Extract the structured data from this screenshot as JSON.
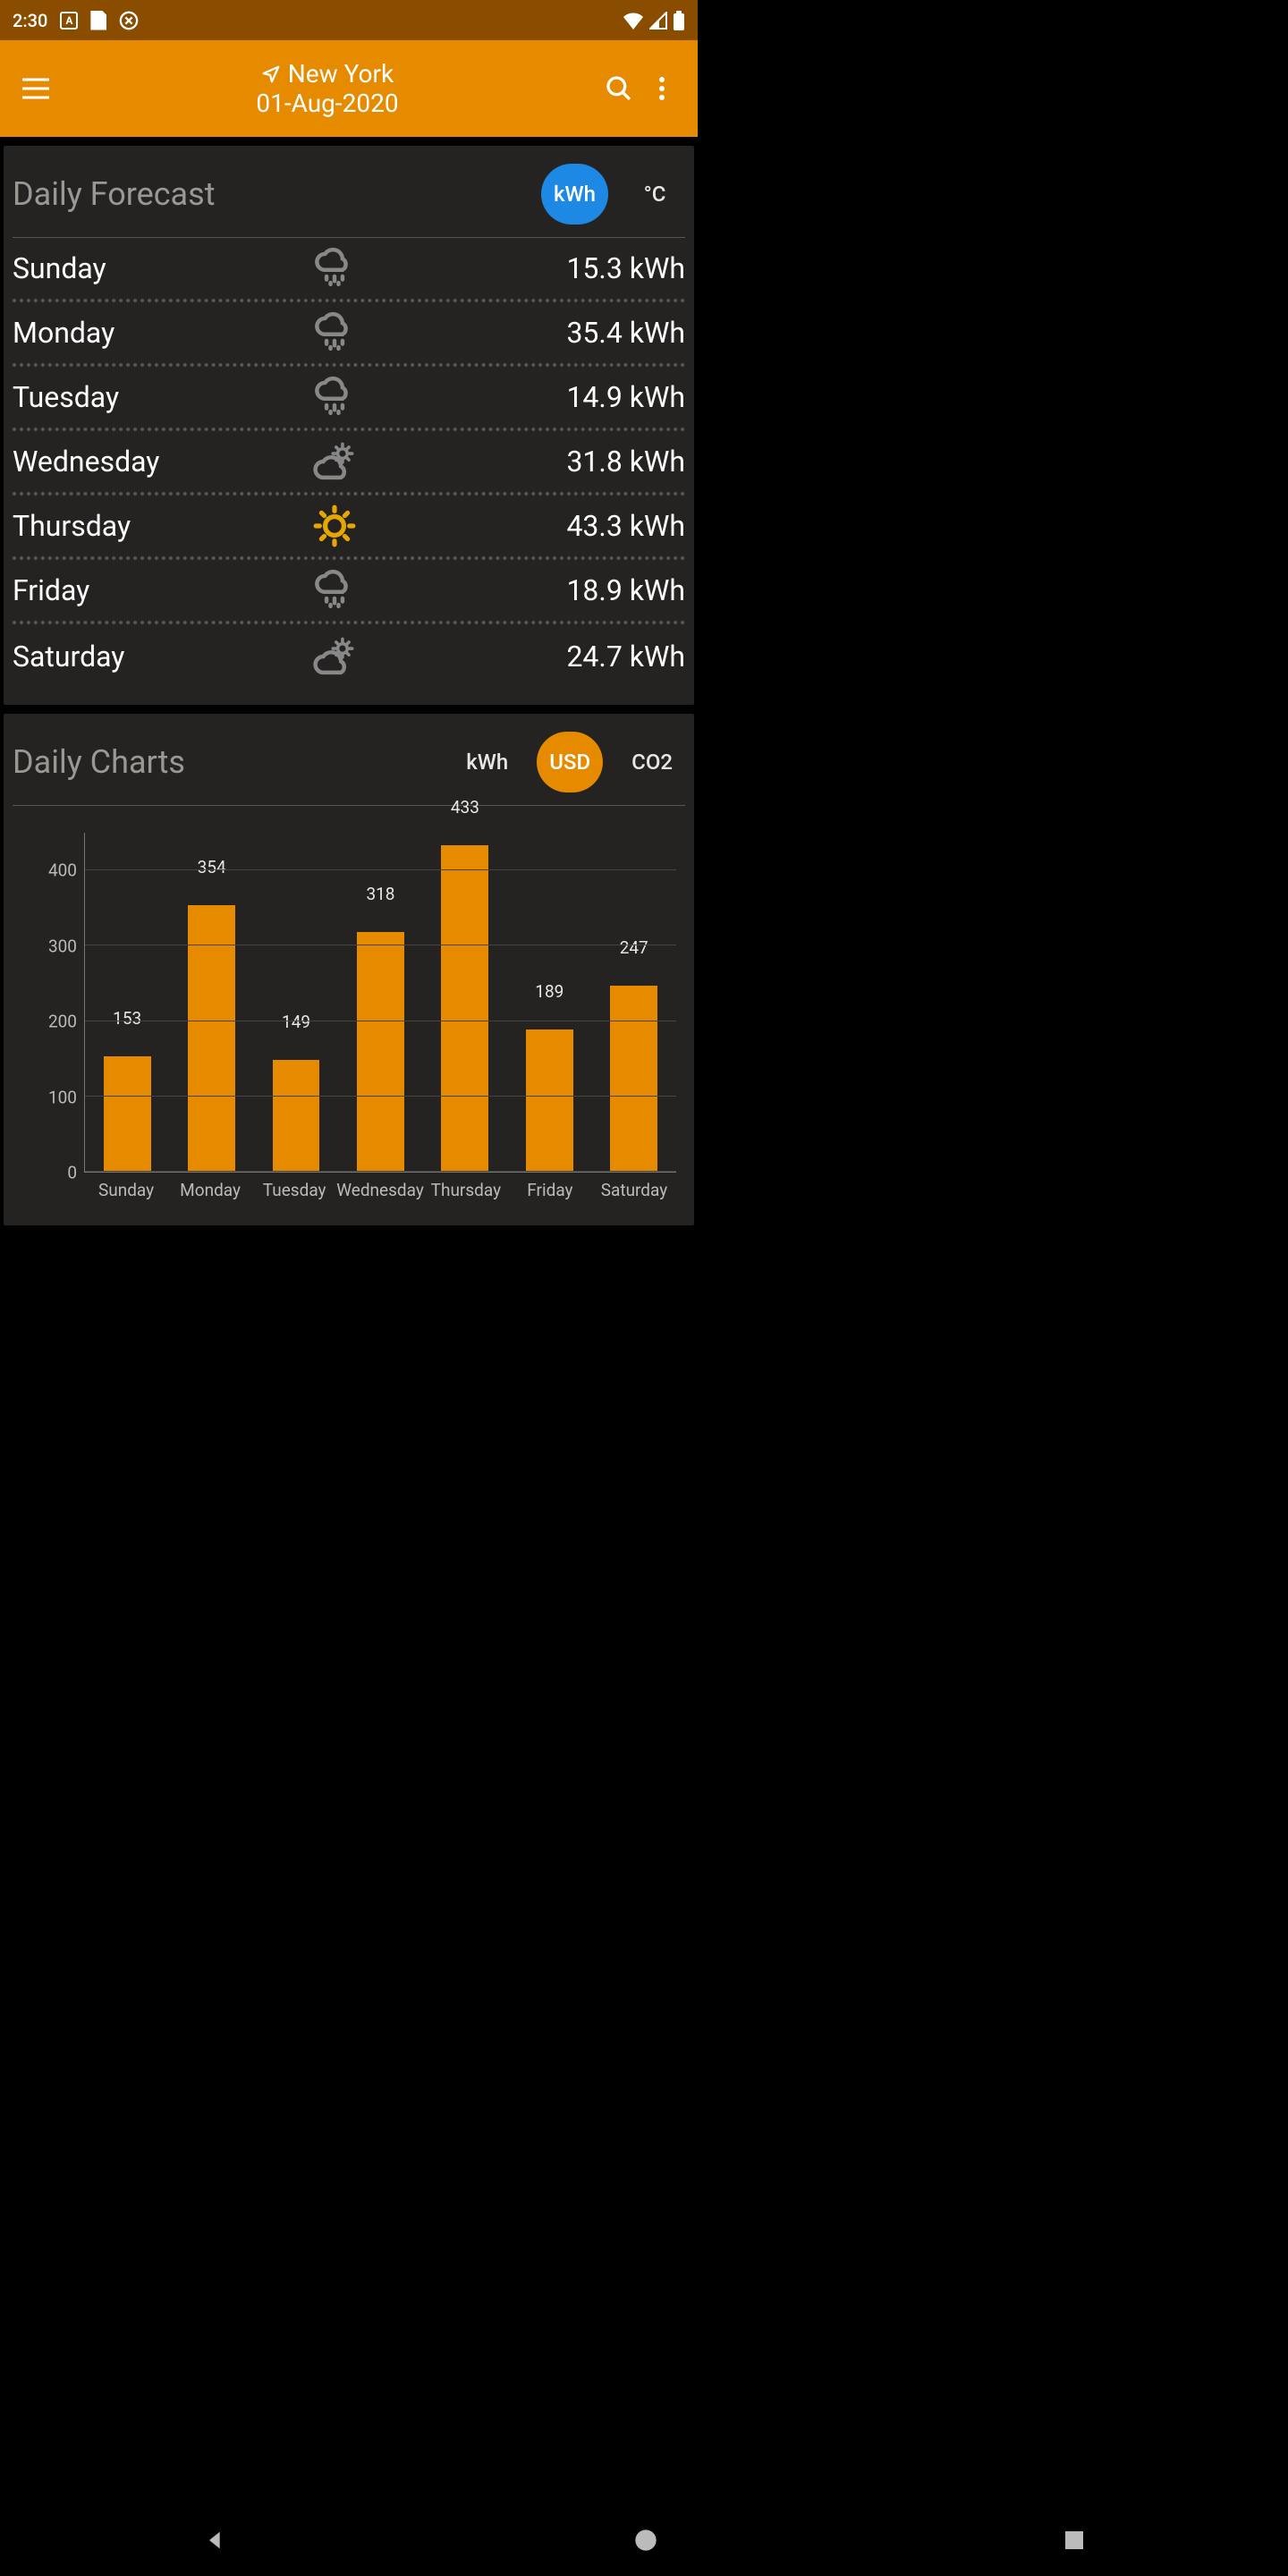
{
  "statusbar": {
    "time": "2:30"
  },
  "appbar": {
    "location": "New York",
    "date": "01-Aug-2020"
  },
  "forecast": {
    "title": "Daily Forecast",
    "unit1": "kWh",
    "unit2": "°C",
    "rows": [
      {
        "day": "Sunday",
        "icon": "rain",
        "value": "15.3 kWh"
      },
      {
        "day": "Monday",
        "icon": "rain",
        "value": "35.4 kWh"
      },
      {
        "day": "Tuesday",
        "icon": "rain",
        "value": "14.9 kWh"
      },
      {
        "day": "Wednesday",
        "icon": "partly",
        "value": "31.8 kWh"
      },
      {
        "day": "Thursday",
        "icon": "sun",
        "value": "43.3 kWh"
      },
      {
        "day": "Friday",
        "icon": "rain",
        "value": "18.9 kWh"
      },
      {
        "day": "Saturday",
        "icon": "partly",
        "value": "24.7 kWh"
      }
    ]
  },
  "charts": {
    "title": "Daily Charts",
    "tabs": {
      "t1": "kWh",
      "t2": "USD",
      "t3": "CO2"
    },
    "type": "bar",
    "bar_color": "#e68a00",
    "grid_color": "#444444",
    "axis_color": "#777777",
    "label_color": "#bdbbb8",
    "background_color": "#252321",
    "ylim": [
      0,
      450
    ],
    "ytick_step": 100,
    "yticks": [
      0,
      100,
      200,
      300,
      400
    ],
    "categories": [
      "Sunday",
      "Monday",
      "Tuesday",
      "Wednesday",
      "Thursday",
      "Friday",
      "Saturday"
    ],
    "values": [
      153,
      354,
      149,
      318,
      433,
      189,
      247
    ]
  }
}
